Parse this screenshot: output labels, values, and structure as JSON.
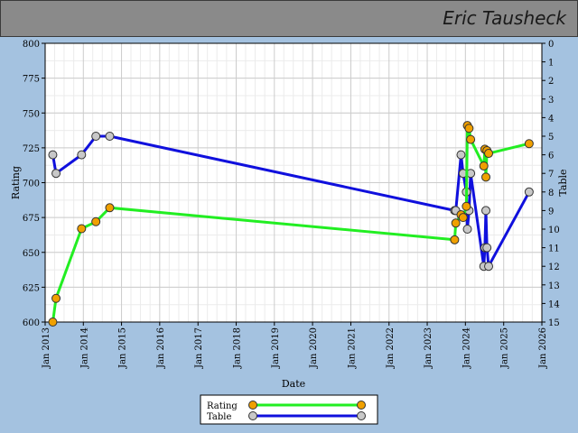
{
  "header": {
    "title": "Eric Tausheck"
  },
  "colors": {
    "background": "#a4c2e0",
    "header": "#8a8a8a",
    "rating_line": "#22ee22",
    "table_line": "#1010dd",
    "rating_marker": "#f0a000",
    "table_marker": "#c8c8c8"
  },
  "chart_data": {
    "type": "line",
    "xlabel": "Date",
    "ylabel_left": "Rating",
    "ylabel_right": "Table",
    "x_ticks": [
      "Jan 2013",
      "Jan 2014",
      "Jan 2015",
      "Jan 2016",
      "Jan 2017",
      "Jan 2018",
      "Jan 2019",
      "Jan 2020",
      "Jan 2021",
      "Jan 2022",
      "Jan 2023",
      "Jan 2024",
      "Jan 2025",
      "Jan 2026"
    ],
    "xlim": [
      "2013-01-01",
      "2026-01-01"
    ],
    "ylim_left": [
      600,
      800
    ],
    "y_ticks_left": [
      600,
      625,
      650,
      675,
      700,
      725,
      750,
      775,
      800
    ],
    "ylim_right": [
      15,
      0
    ],
    "y_ticks_right": [
      0,
      1,
      2,
      3,
      4,
      5,
      6,
      7,
      8,
      9,
      10,
      11,
      12,
      13,
      14,
      15
    ],
    "grid": true,
    "legend_position": "bottom-center",
    "series": [
      {
        "name": "Rating",
        "axis": "left",
        "x": [
          "2013-03-15",
          "2013-04-15",
          "2013-12-15",
          "2014-05-01",
          "2014-09-10",
          "2023-09-20",
          "2023-10-01",
          "2023-11-20",
          "2023-12-10",
          "2024-01-10",
          "2024-01-20",
          "2024-02-05",
          "2024-02-20",
          "2024-06-25",
          "2024-07-05",
          "2024-07-15",
          "2024-07-25",
          "2024-08-10",
          "2025-09-01"
        ],
        "values": [
          600,
          617,
          667,
          672,
          682,
          659,
          671,
          677,
          675,
          683,
          741,
          739,
          731,
          712,
          724,
          704,
          723,
          721,
          728
        ]
      },
      {
        "name": "Table",
        "axis": "right",
        "x": [
          "2013-03-15",
          "2013-04-15",
          "2013-12-15",
          "2014-05-01",
          "2014-09-10",
          "2023-09-20",
          "2023-10-01",
          "2023-11-20",
          "2023-12-10",
          "2024-01-10",
          "2024-01-20",
          "2024-02-05",
          "2024-02-20",
          "2024-06-25",
          "2024-07-05",
          "2024-07-15",
          "2024-07-25",
          "2024-08-10",
          "2025-09-01"
        ],
        "values": [
          6,
          7,
          6,
          5,
          5,
          9,
          9,
          6,
          7,
          8,
          10,
          9,
          7,
          12,
          11,
          9,
          11,
          12,
          8
        ]
      }
    ]
  }
}
